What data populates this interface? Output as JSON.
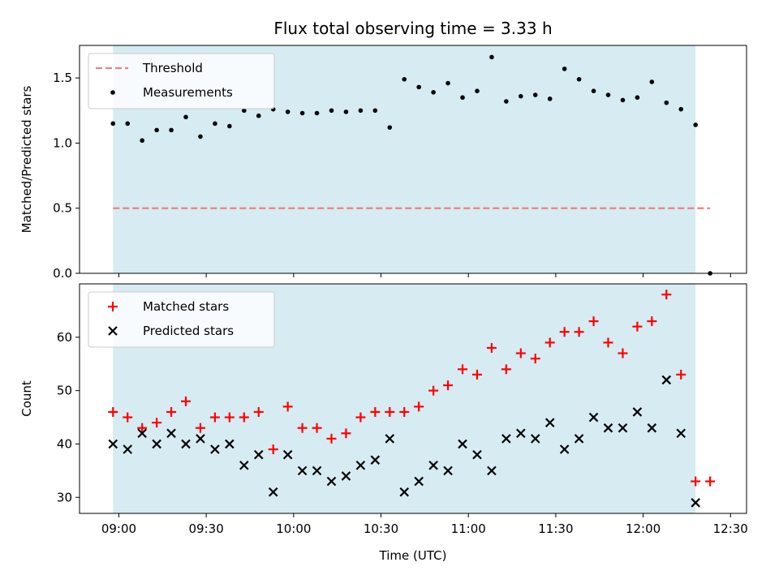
{
  "chart_data": {
    "title": "Flux total observing time = 3.33 h",
    "xlabel": "Time (UTC)",
    "x_ticks": [
      "09:00",
      "09:30",
      "10:00",
      "10:30",
      "11:00",
      "11:30",
      "12:00",
      "12:30"
    ],
    "observing_window": {
      "start": "08:58",
      "end": "12:18",
      "color": "#add8e6"
    },
    "panels": [
      {
        "type": "scatter",
        "ylabel": "Matched/Predicted stars",
        "ylim": [
          0,
          1.75
        ],
        "y_ticks": [
          "0.0",
          "0.5",
          "1.0",
          "1.5"
        ],
        "legend": "upper left",
        "threshold": {
          "name": "Threshold",
          "value": 0.5,
          "x_range": [
            "08:58",
            "12:23"
          ],
          "color": "#f08080"
        },
        "series": [
          {
            "name": "Measurements",
            "color": "#000000",
            "marker": "dot",
            "x": [
              "08:58",
              "09:03",
              "09:08",
              "09:13",
              "09:18",
              "09:23",
              "09:28",
              "09:33",
              "09:38",
              "09:43",
              "09:48",
              "09:53",
              "09:58",
              "10:03",
              "10:08",
              "10:13",
              "10:18",
              "10:23",
              "10:28",
              "10:33",
              "10:38",
              "10:43",
              "10:48",
              "10:53",
              "10:58",
              "11:03",
              "11:08",
              "11:13",
              "11:18",
              "11:23",
              "11:28",
              "11:33",
              "11:38",
              "11:43",
              "11:48",
              "11:53",
              "11:58",
              "12:03",
              "12:08",
              "12:13",
              "12:18",
              "12:23"
            ],
            "y": [
              1.15,
              1.15,
              1.02,
              1.1,
              1.1,
              1.2,
              1.05,
              1.15,
              1.13,
              1.25,
              1.21,
              1.26,
              1.24,
              1.23,
              1.23,
              1.25,
              1.24,
              1.25,
              1.25,
              1.12,
              1.49,
              1.43,
              1.39,
              1.46,
              1.35,
              1.4,
              1.66,
              1.32,
              1.36,
              1.37,
              1.34,
              1.57,
              1.49,
              1.4,
              1.37,
              1.33,
              1.35,
              1.47,
              1.31,
              1.26,
              1.14,
              0.0
            ]
          }
        ]
      },
      {
        "type": "scatter",
        "ylabel": "Count",
        "ylim": [
          27,
          70
        ],
        "y_ticks": [
          "30",
          "40",
          "50",
          "60"
        ],
        "legend": "upper left",
        "series": [
          {
            "name": "Matched stars",
            "color": "#ff0000",
            "marker": "plus",
            "x": [
              "08:58",
              "09:03",
              "09:08",
              "09:13",
              "09:18",
              "09:23",
              "09:28",
              "09:33",
              "09:38",
              "09:43",
              "09:48",
              "09:53",
              "09:58",
              "10:03",
              "10:08",
              "10:13",
              "10:18",
              "10:23",
              "10:28",
              "10:33",
              "10:38",
              "10:43",
              "10:48",
              "10:53",
              "10:58",
              "11:03",
              "11:08",
              "11:13",
              "11:18",
              "11:23",
              "11:28",
              "11:33",
              "11:38",
              "11:43",
              "11:48",
              "11:53",
              "11:58",
              "12:03",
              "12:08",
              "12:13",
              "12:18",
              "12:23"
            ],
            "y": [
              46,
              45,
              43,
              44,
              46,
              48,
              43,
              45,
              45,
              45,
              46,
              39,
              47,
              43,
              43,
              41,
              42,
              45,
              46,
              46,
              46,
              47,
              50,
              51,
              54,
              53,
              58,
              54,
              57,
              56,
              59,
              61,
              61,
              63,
              59,
              57,
              62,
              63,
              68,
              53,
              33,
              33
            ]
          },
          {
            "name": "Predicted stars",
            "color": "#000000",
            "marker": "x",
            "x": [
              "08:58",
              "09:03",
              "09:08",
              "09:13",
              "09:18",
              "09:23",
              "09:28",
              "09:33",
              "09:38",
              "09:43",
              "09:48",
              "09:53",
              "09:58",
              "10:03",
              "10:08",
              "10:13",
              "10:18",
              "10:23",
              "10:28",
              "10:33",
              "10:38",
              "10:43",
              "10:48",
              "10:53",
              "10:58",
              "11:03",
              "11:08",
              "11:13",
              "11:18",
              "11:23",
              "11:28",
              "11:33",
              "11:38",
              "11:43",
              "11:48",
              "11:53",
              "11:58",
              "12:03",
              "12:08",
              "12:13",
              "12:18"
            ],
            "y": [
              40,
              39,
              42,
              40,
              42,
              40,
              41,
              39,
              40,
              36,
              38,
              31,
              38,
              35,
              35,
              33,
              34,
              36,
              37,
              41,
              31,
              33,
              36,
              35,
              40,
              38,
              35,
              41,
              42,
              41,
              44,
              39,
              41,
              45,
              43,
              43,
              46,
              43,
              52,
              42,
              29
            ]
          }
        ]
      }
    ]
  }
}
